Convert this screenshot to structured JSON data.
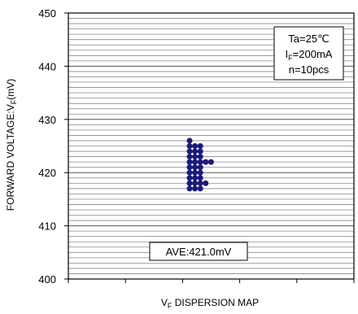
{
  "chart_data": {
    "type": "scatter",
    "title": "",
    "xlabel": {
      "prefix": "V",
      "sub": "F",
      "suffix": " DISPERSION MAP"
    },
    "ylabel": {
      "prefix": "FORWARD VOLTAGE:V",
      "sub": "F",
      "suffix": "(mV)"
    },
    "ylim": [
      400,
      450
    ],
    "yticks": [
      400,
      410,
      420,
      430,
      440,
      450
    ],
    "y_minor_step": 1,
    "grid": true,
    "conditions": [
      {
        "prefix": "Ta=25",
        "sub": "",
        "suffix": "℃"
      },
      {
        "prefix": "I",
        "sub": "F",
        "suffix": "=200mA"
      },
      {
        "prefix": "n=10pcs",
        "sub": "",
        "suffix": ""
      }
    ],
    "average_label": "AVE:421.0mV",
    "marker_color": "#1a1a7a",
    "points": [
      {
        "col": 0,
        "values": [
          417,
          418,
          419,
          420,
          421,
          422,
          423,
          424,
          425,
          426
        ]
      },
      {
        "col": 1,
        "values": [
          417,
          418,
          419,
          420,
          421,
          422,
          423,
          424,
          425
        ]
      },
      {
        "col": 2,
        "values": [
          417,
          418,
          419,
          420,
          421,
          422,
          423,
          424,
          425
        ]
      },
      {
        "col": 3,
        "values": [
          418,
          422
        ]
      },
      {
        "col": 4,
        "values": [
          422
        ]
      }
    ]
  }
}
